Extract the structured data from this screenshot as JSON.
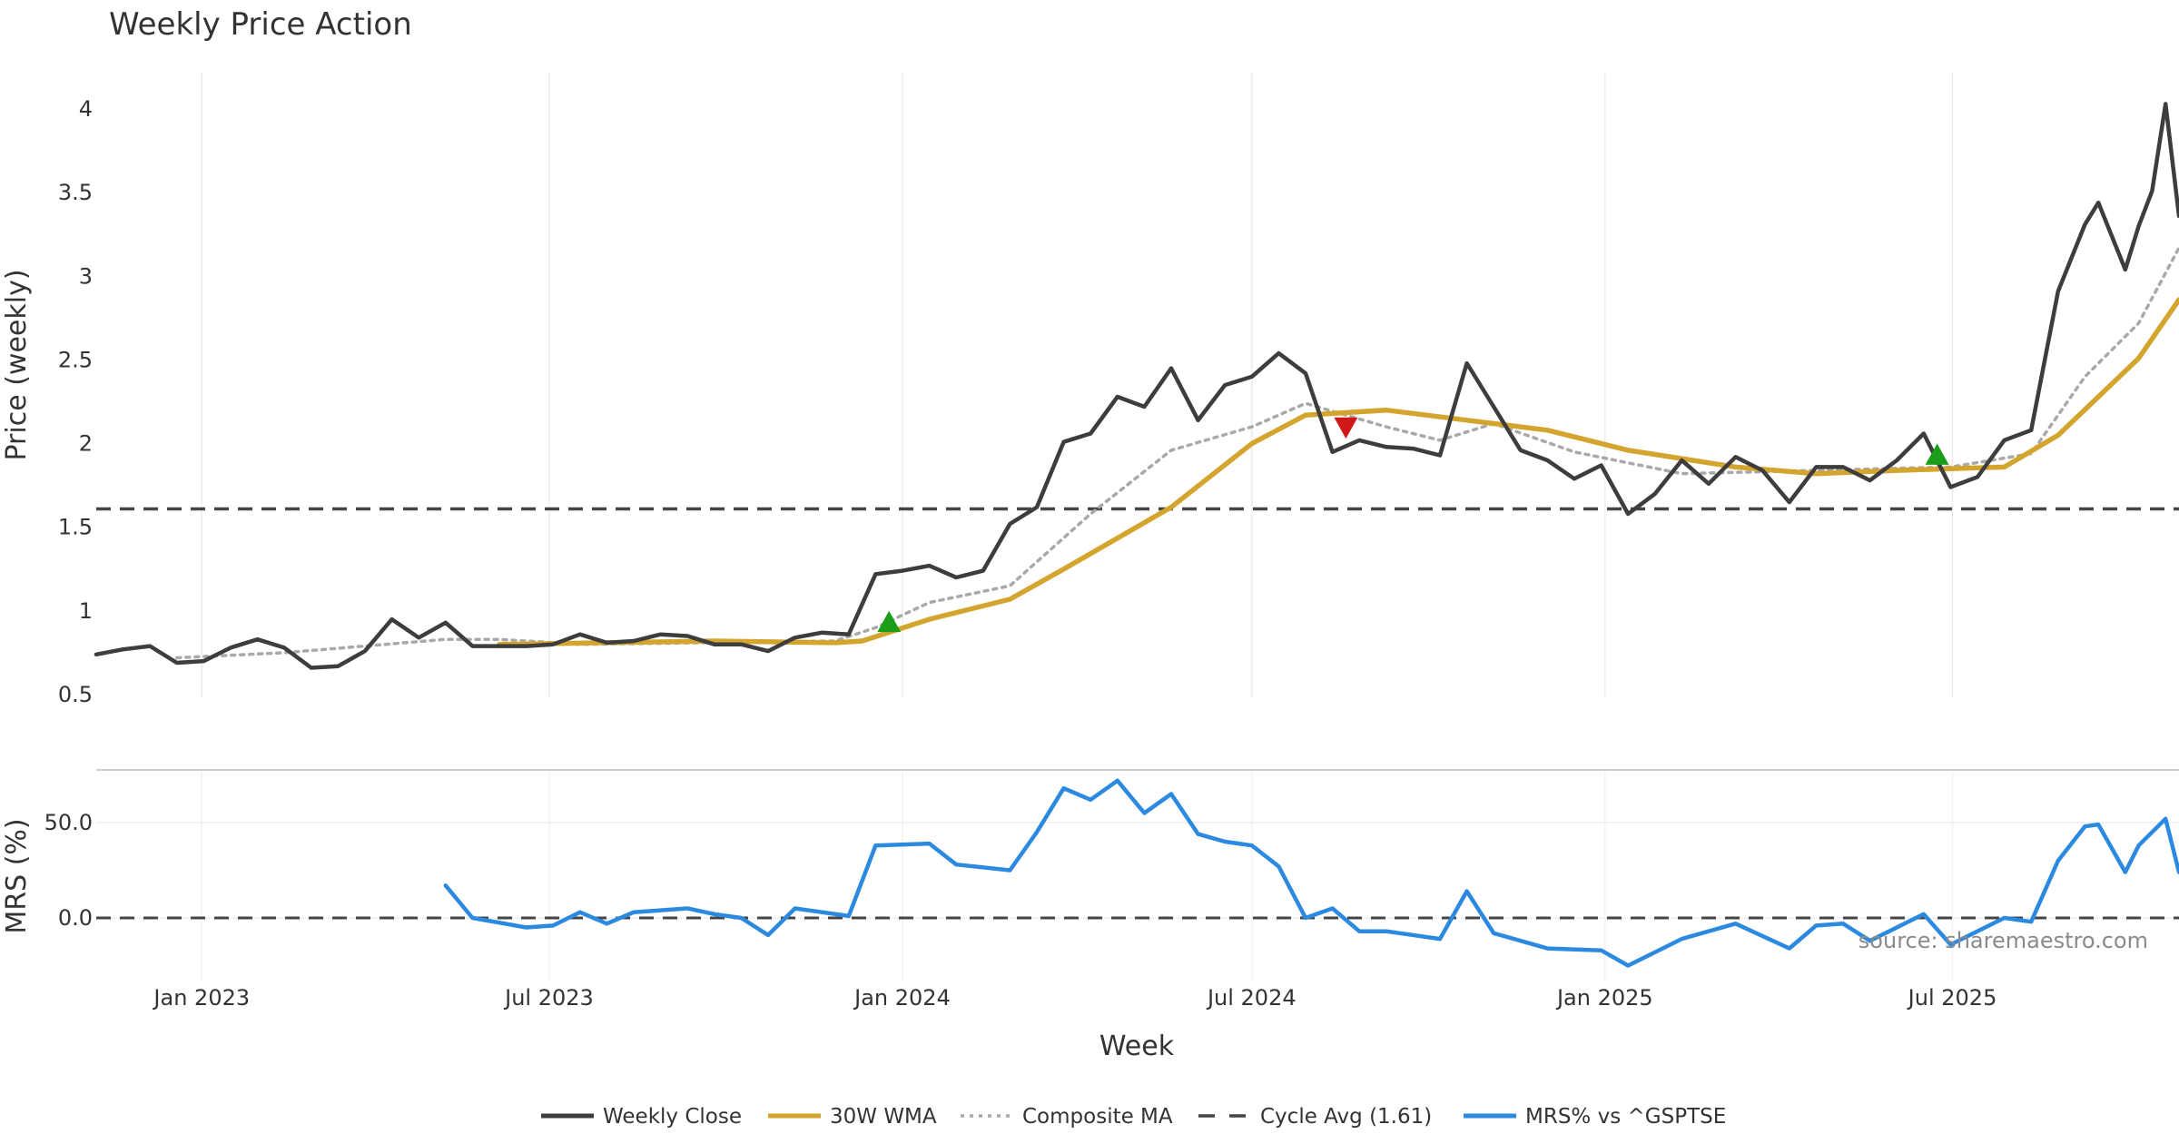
{
  "chart_data": {
    "type": "line",
    "title": "Weekly Price Action",
    "xlabel": "Week",
    "source_note": "source: sharemaestro.com",
    "x_start": "2022-11-07",
    "x_end": "2025-10-27",
    "x_ticks": [
      {
        "date": "2023-01-01",
        "label": "Jan 2023"
      },
      {
        "date": "2023-07-01",
        "label": "Jul 2023"
      },
      {
        "date": "2024-01-01",
        "label": "Jan 2024"
      },
      {
        "date": "2024-07-01",
        "label": "Jul 2024"
      },
      {
        "date": "2025-01-01",
        "label": "Jan 2025"
      },
      {
        "date": "2025-07-01",
        "label": "Jul 2025"
      }
    ],
    "price_panel": {
      "ylabel": "Price (weekly)",
      "ylim": [
        0.5,
        4.2
      ],
      "yticks": [
        {
          "v": 0.5,
          "label": "0.5"
        },
        {
          "v": 1,
          "label": "1"
        },
        {
          "v": 1.5,
          "label": "1.5"
        },
        {
          "v": 2,
          "label": "2"
        },
        {
          "v": 2.5,
          "label": "2.5"
        },
        {
          "v": 3,
          "label": "3"
        },
        {
          "v": 3.5,
          "label": "3.5"
        },
        {
          "v": 4,
          "label": "4"
        }
      ],
      "cycle_avg": 1.61
    },
    "mrs_panel": {
      "ylabel": "MRS (%)",
      "ylim": [
        -30,
        75
      ],
      "yticks": [
        {
          "v": 0,
          "label": "0.0"
        },
        {
          "v": 50,
          "label": "50.0"
        }
      ],
      "zero_line": 0
    },
    "series": [
      {
        "name": "Weekly Close",
        "color": "#3d3d3d",
        "style": "solid",
        "points": [
          [
            "2022-11-07",
            0.74
          ],
          [
            "2022-11-21",
            0.77
          ],
          [
            "2022-12-05",
            0.79
          ],
          [
            "2022-12-19",
            0.69
          ],
          [
            "2023-01-02",
            0.7
          ],
          [
            "2023-01-16",
            0.78
          ],
          [
            "2023-01-30",
            0.83
          ],
          [
            "2023-02-13",
            0.78
          ],
          [
            "2023-02-27",
            0.66
          ],
          [
            "2023-03-13",
            0.67
          ],
          [
            "2023-03-27",
            0.76
          ],
          [
            "2023-04-10",
            0.95
          ],
          [
            "2023-04-24",
            0.84
          ],
          [
            "2023-05-08",
            0.93
          ],
          [
            "2023-05-22",
            0.79
          ],
          [
            "2023-06-05",
            0.79
          ],
          [
            "2023-06-19",
            0.79
          ],
          [
            "2023-07-03",
            0.8
          ],
          [
            "2023-07-17",
            0.86
          ],
          [
            "2023-07-31",
            0.81
          ],
          [
            "2023-08-14",
            0.82
          ],
          [
            "2023-08-28",
            0.86
          ],
          [
            "2023-09-11",
            0.85
          ],
          [
            "2023-09-25",
            0.8
          ],
          [
            "2023-10-09",
            0.8
          ],
          [
            "2023-10-23",
            0.76
          ],
          [
            "2023-11-06",
            0.84
          ],
          [
            "2023-11-20",
            0.87
          ],
          [
            "2023-12-04",
            0.86
          ],
          [
            "2023-12-18",
            1.22
          ],
          [
            "2024-01-01",
            1.24
          ],
          [
            "2024-01-15",
            1.27
          ],
          [
            "2024-01-29",
            1.2
          ],
          [
            "2024-02-12",
            1.24
          ],
          [
            "2024-02-26",
            1.52
          ],
          [
            "2024-03-11",
            1.62
          ],
          [
            "2024-03-25",
            2.01
          ],
          [
            "2024-04-08",
            2.06
          ],
          [
            "2024-04-22",
            2.28
          ],
          [
            "2024-05-06",
            2.22
          ],
          [
            "2024-05-20",
            2.45
          ],
          [
            "2024-06-03",
            2.14
          ],
          [
            "2024-06-17",
            2.35
          ],
          [
            "2024-07-01",
            2.4
          ],
          [
            "2024-07-15",
            2.54
          ],
          [
            "2024-07-29",
            2.42
          ],
          [
            "2024-08-12",
            1.95
          ],
          [
            "2024-08-26",
            2.02
          ],
          [
            "2024-09-09",
            1.98
          ],
          [
            "2024-09-23",
            1.97
          ],
          [
            "2024-10-07",
            1.93
          ],
          [
            "2024-10-21",
            2.48
          ],
          [
            "2024-11-04",
            2.22
          ],
          [
            "2024-11-18",
            1.96
          ],
          [
            "2024-12-02",
            1.9
          ],
          [
            "2024-12-16",
            1.79
          ],
          [
            "2024-12-30",
            1.87
          ],
          [
            "2025-01-13",
            1.58
          ],
          [
            "2025-01-27",
            1.7
          ],
          [
            "2025-02-10",
            1.9
          ],
          [
            "2025-02-24",
            1.76
          ],
          [
            "2025-03-10",
            1.92
          ],
          [
            "2025-03-24",
            1.84
          ],
          [
            "2025-04-07",
            1.65
          ],
          [
            "2025-04-21",
            1.86
          ],
          [
            "2025-05-05",
            1.86
          ],
          [
            "2025-05-19",
            1.78
          ],
          [
            "2025-06-02",
            1.9
          ],
          [
            "2025-06-16",
            2.06
          ],
          [
            "2025-06-30",
            1.74
          ],
          [
            "2025-07-14",
            1.8
          ],
          [
            "2025-07-28",
            2.02
          ],
          [
            "2025-08-11",
            2.08
          ],
          [
            "2025-08-25",
            2.91
          ],
          [
            "2025-09-08",
            3.31
          ],
          [
            "2025-09-15",
            3.44
          ],
          [
            "2025-09-29",
            3.04
          ],
          [
            "2025-10-06",
            3.3
          ],
          [
            "2025-10-13",
            3.51
          ],
          [
            "2025-10-20",
            4.03
          ],
          [
            "2025-10-27",
            3.36
          ]
        ]
      },
      {
        "name": "30W WMA",
        "color": "#d4a52e",
        "style": "solid",
        "points": [
          [
            "2023-06-05",
            0.8
          ],
          [
            "2023-09-25",
            0.82
          ],
          [
            "2023-11-27",
            0.81
          ],
          [
            "2023-12-11",
            0.82
          ],
          [
            "2024-01-15",
            0.95
          ],
          [
            "2024-02-26",
            1.07
          ],
          [
            "2024-03-25",
            1.25
          ],
          [
            "2024-05-20",
            1.62
          ],
          [
            "2024-07-01",
            2.0
          ],
          [
            "2024-07-29",
            2.17
          ],
          [
            "2024-09-09",
            2.2
          ],
          [
            "2024-10-21",
            2.14
          ],
          [
            "2024-12-02",
            2.08
          ],
          [
            "2025-01-13",
            1.96
          ],
          [
            "2025-03-10",
            1.86
          ],
          [
            "2025-04-21",
            1.82
          ],
          [
            "2025-06-02",
            1.84
          ],
          [
            "2025-07-28",
            1.86
          ],
          [
            "2025-08-25",
            2.05
          ],
          [
            "2025-10-06",
            2.51
          ],
          [
            "2025-10-27",
            2.86
          ]
        ]
      },
      {
        "name": "Composite MA",
        "color": "#a9a9a9",
        "style": "dotted",
        "points": [
          [
            "2022-12-19",
            0.72
          ],
          [
            "2023-02-13",
            0.75
          ],
          [
            "2023-05-08",
            0.83
          ],
          [
            "2023-06-05",
            0.83
          ],
          [
            "2023-07-17",
            0.8
          ],
          [
            "2023-11-27",
            0.82
          ],
          [
            "2023-12-18",
            0.9
          ],
          [
            "2024-01-15",
            1.05
          ],
          [
            "2024-02-26",
            1.15
          ],
          [
            "2024-04-08",
            1.58
          ],
          [
            "2024-05-20",
            1.96
          ],
          [
            "2024-07-01",
            2.1
          ],
          [
            "2024-07-29",
            2.24
          ],
          [
            "2024-09-09",
            2.1
          ],
          [
            "2024-10-07",
            2.02
          ],
          [
            "2024-11-04",
            2.12
          ],
          [
            "2024-12-16",
            1.95
          ],
          [
            "2025-02-10",
            1.82
          ],
          [
            "2025-04-21",
            1.84
          ],
          [
            "2025-06-30",
            1.86
          ],
          [
            "2025-08-11",
            1.94
          ],
          [
            "2025-09-08",
            2.4
          ],
          [
            "2025-10-06",
            2.72
          ],
          [
            "2025-10-27",
            3.17
          ]
        ]
      },
      {
        "name": "MRS% vs ^GSPTSE",
        "color": "#2b8ae0",
        "style": "solid",
        "panel": "mrs",
        "points": [
          [
            "2023-05-08",
            17
          ],
          [
            "2023-05-22",
            0
          ],
          [
            "2023-06-19",
            -5
          ],
          [
            "2023-07-03",
            -4
          ],
          [
            "2023-07-17",
            3
          ],
          [
            "2023-07-31",
            -3
          ],
          [
            "2023-08-14",
            3
          ],
          [
            "2023-09-11",
            5
          ],
          [
            "2023-09-25",
            2
          ],
          [
            "2023-10-09",
            0
          ],
          [
            "2023-10-23",
            -9
          ],
          [
            "2023-11-06",
            5
          ],
          [
            "2023-12-04",
            1
          ],
          [
            "2023-12-18",
            38
          ],
          [
            "2024-01-15",
            39
          ],
          [
            "2024-01-29",
            28
          ],
          [
            "2024-02-26",
            25
          ],
          [
            "2024-03-11",
            45
          ],
          [
            "2024-03-25",
            68
          ],
          [
            "2024-04-08",
            62
          ],
          [
            "2024-04-22",
            72
          ],
          [
            "2024-05-06",
            55
          ],
          [
            "2024-05-20",
            65
          ],
          [
            "2024-06-03",
            44
          ],
          [
            "2024-06-17",
            40
          ],
          [
            "2024-07-01",
            38
          ],
          [
            "2024-07-15",
            27
          ],
          [
            "2024-07-29",
            0
          ],
          [
            "2024-08-12",
            5
          ],
          [
            "2024-08-26",
            -7
          ],
          [
            "2024-09-09",
            -7
          ],
          [
            "2024-10-07",
            -11
          ],
          [
            "2024-10-21",
            14
          ],
          [
            "2024-11-04",
            -8
          ],
          [
            "2024-12-02",
            -16
          ],
          [
            "2024-12-30",
            -17
          ],
          [
            "2025-01-13",
            -25
          ],
          [
            "2025-02-10",
            -11
          ],
          [
            "2025-03-10",
            -3
          ],
          [
            "2025-04-07",
            -16
          ],
          [
            "2025-04-21",
            -4
          ],
          [
            "2025-05-05",
            -3
          ],
          [
            "2025-05-19",
            -12
          ],
          [
            "2025-06-16",
            2
          ],
          [
            "2025-06-30",
            -14
          ],
          [
            "2025-07-28",
            0
          ],
          [
            "2025-08-11",
            -2
          ],
          [
            "2025-08-25",
            30
          ],
          [
            "2025-09-08",
            48
          ],
          [
            "2025-09-15",
            49
          ],
          [
            "2025-09-29",
            24
          ],
          [
            "2025-10-06",
            38
          ],
          [
            "2025-10-20",
            52
          ],
          [
            "2025-10-27",
            24
          ]
        ]
      }
    ],
    "markers": [
      {
        "date": "2023-12-25",
        "y": 0.93,
        "type": "buy",
        "color": "#1a9e1a"
      },
      {
        "date": "2024-08-19",
        "y": 2.1,
        "type": "sell",
        "color": "#d01818"
      },
      {
        "date": "2025-06-23",
        "y": 1.93,
        "type": "buy",
        "color": "#1a9e1a"
      }
    ],
    "legend": {
      "placement": "bottom",
      "items": [
        {
          "label": "Weekly Close",
          "style": "solid",
          "color": "#3d3d3d"
        },
        {
          "label": "30W WMA",
          "style": "solid",
          "color": "#d4a52e"
        },
        {
          "label": "Composite MA",
          "style": "dotted",
          "color": "#a9a9a9"
        },
        {
          "label": "Cycle Avg (1.61)",
          "style": "dashed",
          "color": "#444444"
        },
        {
          "label": "MRS% vs ^GSPTSE",
          "style": "solid",
          "color": "#2b8ae0"
        }
      ]
    }
  }
}
